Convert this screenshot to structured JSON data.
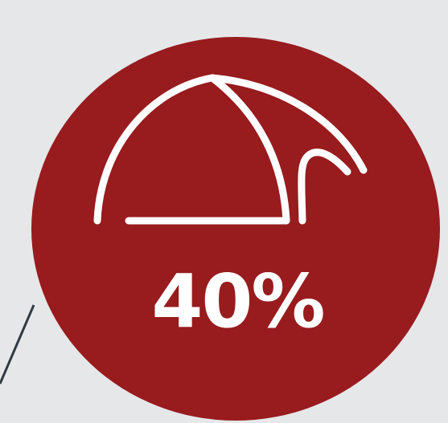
{
  "stat": {
    "value": "40%",
    "icon": "tent-icon"
  },
  "colors": {
    "background": "#e6e7e9",
    "circle": "#981b1e",
    "foreground": "#ffffff",
    "pointer_line": "#2f3a45"
  }
}
